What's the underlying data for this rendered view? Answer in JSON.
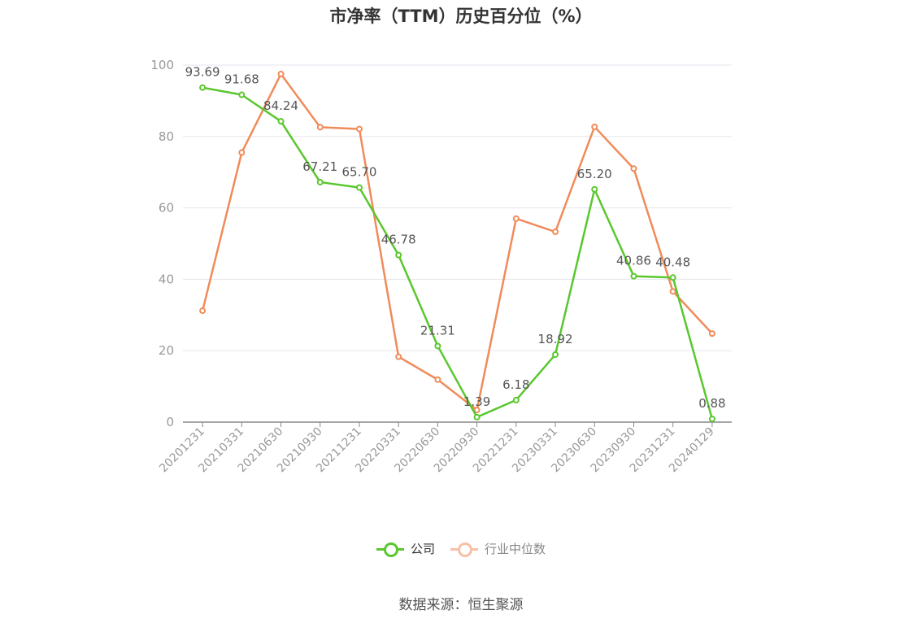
{
  "chart_data": {
    "type": "line",
    "title": "市净率（TTM）历史百分位（%）",
    "categories": [
      "20201231",
      "20210331",
      "20210630",
      "20210930",
      "20211231",
      "20220331",
      "20220630",
      "20220930",
      "20221231",
      "20230331",
      "20230630",
      "20230930",
      "20231231",
      "20240129"
    ],
    "ylim": [
      0,
      100
    ],
    "yticks": [
      0,
      20,
      40,
      60,
      80,
      100
    ],
    "grid": true,
    "legend_position": "bottom",
    "series": [
      {
        "name": "公司",
        "color": "#5ac72e",
        "values": [
          93.69,
          91.68,
          84.24,
          67.21,
          65.7,
          46.78,
          21.31,
          1.39,
          6.18,
          18.92,
          65.2,
          40.86,
          40.48,
          0.88
        ],
        "labels": [
          "93.69",
          "91.68",
          "84.24",
          "67.21",
          "65.70",
          "46.78",
          "21.31",
          "1.39",
          "6.18",
          "18.92",
          "65.20",
          "40.86",
          "40.48",
          "0.88"
        ]
      },
      {
        "name": "行业中位数",
        "color": "#f08b5a",
        "values": [
          31.2,
          75.5,
          97.5,
          82.6,
          82.1,
          18.3,
          11.9,
          3.4,
          57.0,
          53.3,
          82.7,
          71.0,
          36.6,
          24.8
        ]
      }
    ]
  },
  "source": "数据来源：恒生聚源"
}
